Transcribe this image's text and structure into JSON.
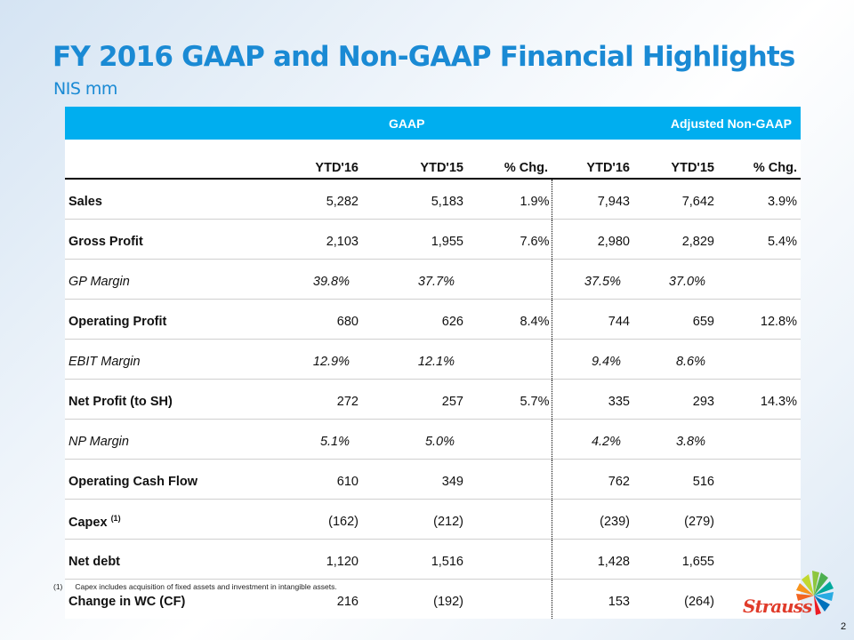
{
  "slide": {
    "title": "FY 2016 GAAP and Non-GAAP Financial Highlights",
    "subtitle": "NIS mm",
    "page_number": "2"
  },
  "colors": {
    "title": "#1a8ad4",
    "header_band": "#00aeef",
    "logo_text": "#e03b2a"
  },
  "table": {
    "group_headers": {
      "gaap": "GAAP",
      "non_gaap": "Adjusted Non-GAAP"
    },
    "columns": [
      "",
      "YTD'16",
      "YTD'15",
      "% Chg.",
      "YTD'16",
      "YTD'15",
      "% Chg."
    ],
    "rows": [
      {
        "label": "Sales",
        "sup": "",
        "style": "bold",
        "values": [
          "5,282",
          "5,183",
          "1.9%",
          "7,943",
          "7,642",
          "3.9%"
        ]
      },
      {
        "label": "Gross Profit",
        "sup": "",
        "style": "bold",
        "values": [
          "2,103",
          "1,955",
          "7.6%",
          "2,980",
          "2,829",
          "5.4%"
        ]
      },
      {
        "label": "GP Margin",
        "sup": "",
        "style": "italic",
        "values": [
          "39.8%",
          "37.7%",
          "",
          "37.5%",
          "37.0%",
          ""
        ]
      },
      {
        "label": "Operating Profit",
        "sup": "",
        "style": "bold",
        "values": [
          "680",
          "626",
          "8.4%",
          "744",
          "659",
          "12.8%"
        ]
      },
      {
        "label": "EBIT Margin",
        "sup": "",
        "style": "italic",
        "values": [
          "12.9%",
          "12.1%",
          "",
          "9.4%",
          "8.6%",
          ""
        ]
      },
      {
        "label": "Net Profit (to SH)",
        "sup": "",
        "style": "bold",
        "values": [
          "272",
          "257",
          "5.7%",
          "335",
          "293",
          "14.3%"
        ]
      },
      {
        "label": "NP Margin",
        "sup": "",
        "style": "italic",
        "values": [
          "5.1%",
          "5.0%",
          "",
          "4.2%",
          "3.8%",
          ""
        ]
      },
      {
        "label": "Operating Cash Flow",
        "sup": "",
        "style": "bold",
        "values": [
          "610",
          "349",
          "",
          "762",
          "516",
          ""
        ]
      },
      {
        "label": "Capex",
        "sup": "(1)",
        "style": "bold",
        "values": [
          "(162)",
          "(212)",
          "",
          "(239)",
          "(279)",
          ""
        ]
      },
      {
        "label": "Net debt",
        "sup": "",
        "style": "bold",
        "values": [
          "1,120",
          "1,516",
          "",
          "1,428",
          "1,655",
          ""
        ]
      },
      {
        "label": "Change in WC (CF)",
        "sup": "",
        "style": "bold",
        "values": [
          "216",
          "(192)",
          "",
          "153",
          "(264)",
          ""
        ]
      }
    ]
  },
  "footnote": {
    "marker": "(1)",
    "text": "Capex includes acquisition of fixed assets and investment in intangible assets."
  },
  "logo": {
    "text": "Strauss",
    "icon": "flower-burst-icon"
  }
}
